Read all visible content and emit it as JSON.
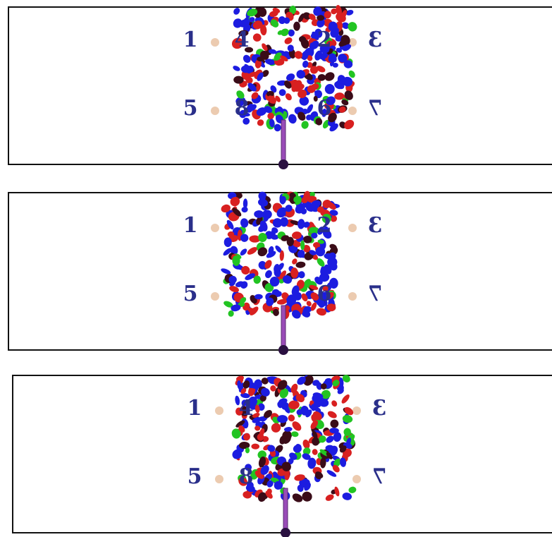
{
  "panels": [
    {
      "labels": [
        "1",
        "4",
        "2",
        "3",
        "5",
        "8",
        "6",
        "7"
      ]
    },
    {
      "labels": [
        "1",
        null,
        "2",
        "3",
        "5",
        null,
        "6",
        "7"
      ]
    },
    {
      "labels": [
        "1",
        "4",
        null,
        "3",
        "5",
        "8",
        null,
        "7"
      ]
    }
  ]
}
